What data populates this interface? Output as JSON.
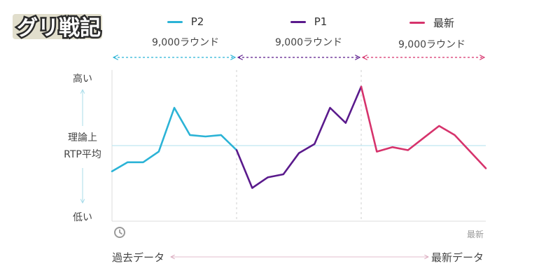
{
  "logo": {
    "text": "グリ戦記"
  },
  "legend": [
    {
      "name": "P2",
      "rounds": "9,000ラウンド",
      "color": "#2bb3d6"
    },
    {
      "name": "P1",
      "rounds": "9,000ラウンド",
      "color": "#5a1a8c"
    },
    {
      "name": "最新",
      "rounds": "9,000ラウンド",
      "color": "#d6336c"
    }
  ],
  "y_axis": {
    "high": "高い",
    "mid_line1": "理論上",
    "mid_line2": "RTP平均",
    "low": "低い"
  },
  "x_axis": {
    "past": "過去データ",
    "latest_data": "最新データ",
    "latest_tag": "最新"
  },
  "icons": {
    "clock": "clock-icon"
  },
  "chart_data": {
    "type": "line",
    "ylim": [
      0,
      100
    ],
    "baseline": 50,
    "series": [
      {
        "name": "P2",
        "color": "#2bb3d6",
        "values": [
          33,
          39,
          39,
          46,
          75,
          57,
          56,
          57,
          47
        ]
      },
      {
        "name": "P1",
        "color": "#5a1a8c",
        "values": [
          47,
          22,
          29,
          31,
          45,
          51,
          75,
          65,
          89
        ]
      },
      {
        "name": "最新",
        "color": "#d6336c",
        "values": [
          89,
          46,
          49,
          47,
          55,
          63,
          57,
          46,
          35
        ]
      }
    ]
  }
}
